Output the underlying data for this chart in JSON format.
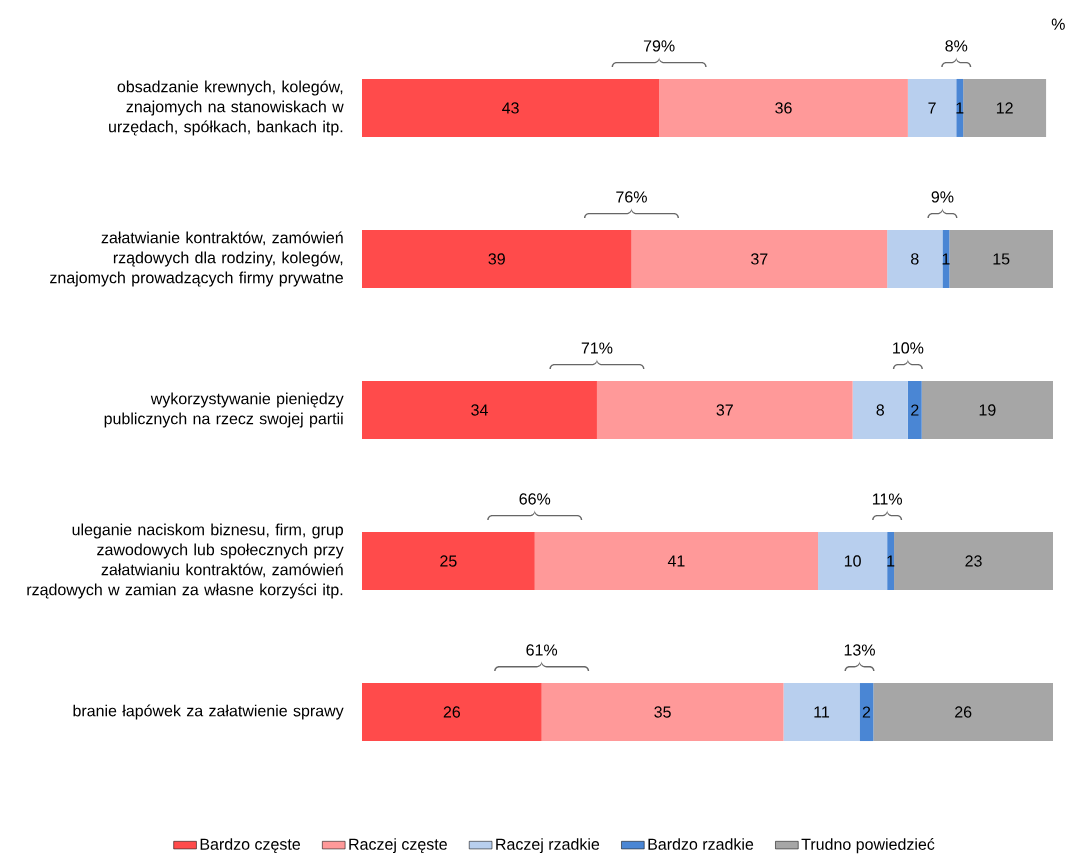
{
  "chart_data": {
    "type": "bar",
    "orientation": "horizontal",
    "stacked": true,
    "data_labels": true,
    "legend": "bottom",
    "categories": [
      "obsadzanie krewnych, kolegów, znajomych na stanowiskach w urzędach, spółkach, bankach itp.",
      "załatwianie kontraktów, zamówień rządowych dla rodziny, kolegów, znajomych prowadzących firmy prywatne",
      "wykorzystywanie pieniędzy publicznych na rzecz swojej partii",
      "uleganie naciskom biznesu, firm, grup zawodowych lub społecznych przy załatwianiu kontraktów, zamówień rządowych w zamian za własne korzyści itp.",
      "branie łapówek za załatwienie sprawy"
    ],
    "series": [
      {
        "name": "Bardzo częste",
        "color": "#ff4b4b",
        "values": [
          43,
          39,
          34,
          25,
          26
        ]
      },
      {
        "name": "Raczej częste",
        "color": "#ff9999",
        "values": [
          36,
          37,
          37,
          41,
          35
        ]
      },
      {
        "name": "Raczej rzadkie",
        "color": "#b8cfee",
        "values": [
          7,
          8,
          8,
          10,
          11
        ]
      },
      {
        "name": "Bardzo rzadkie",
        "color": "#4a86d4",
        "values": [
          1,
          1,
          2,
          1,
          2
        ]
      },
      {
        "name": "Trudno powiedzieć",
        "color": "#a6a6a6",
        "values": [
          12,
          15,
          19,
          23,
          26
        ]
      }
    ],
    "annotations": [
      "%",
      "79%",
      "8%",
      "76%",
      "9%",
      "71%",
      "10%",
      "66%",
      "11%",
      "61%",
      "13%"
    ]
  }
}
